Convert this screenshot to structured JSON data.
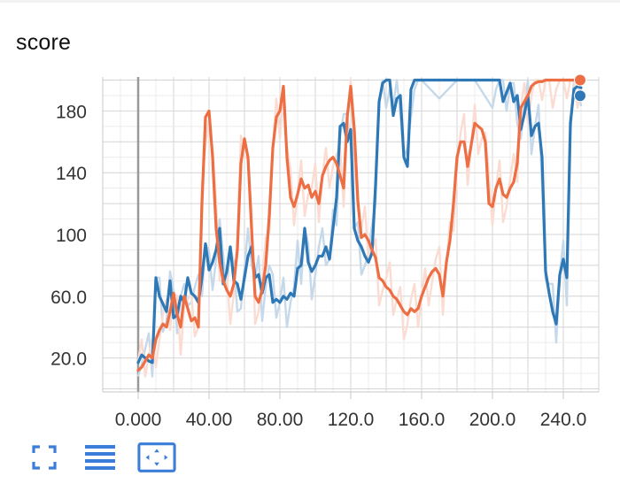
{
  "title": "score",
  "toolbar": {
    "buttons": [
      {
        "name": "fullscreen",
        "icon": "expand-icon"
      },
      {
        "name": "log-scale-toggle",
        "icon": "lines-icon"
      },
      {
        "name": "fit-domain",
        "icon": "fit-to-data-icon",
        "active": true
      }
    ],
    "accent": "#3b7dd8"
  },
  "chart_data": {
    "type": "line",
    "title": "score",
    "xlabel": "",
    "ylabel": "",
    "xlim": [
      -20,
      260
    ],
    "ylim": [
      -2,
      202
    ],
    "xticks": [
      0,
      40,
      80,
      120,
      160,
      200,
      240
    ],
    "xtick_labels": [
      "0.000",
      "40.00",
      "80.00",
      "120.0",
      "160.0",
      "200.0",
      "240.0"
    ],
    "yticks": [
      20,
      60,
      100,
      140,
      180
    ],
    "ytick_labels": [
      "20.0",
      "60.0",
      "100",
      "140",
      "180"
    ],
    "grid": true,
    "series": [
      {
        "color": "#2f78b6",
        "raw_color": "#c6d9ea",
        "x": [
          0,
          2,
          4,
          6,
          8,
          10,
          12,
          14,
          16,
          18,
          20,
          22,
          24,
          26,
          28,
          30,
          32,
          34,
          36,
          38,
          40,
          42,
          44,
          46,
          48,
          50,
          52,
          54,
          56,
          58,
          60,
          62,
          64,
          66,
          68,
          70,
          72,
          74,
          76,
          78,
          80,
          82,
          84,
          86,
          88,
          90,
          92,
          94,
          96,
          98,
          100,
          102,
          104,
          106,
          108,
          110,
          112,
          114,
          116,
          118,
          120,
          122,
          124,
          126,
          128,
          130,
          132,
          134,
          136,
          138,
          140,
          142,
          144,
          146,
          148,
          150,
          152,
          154,
          156,
          158,
          160,
          170,
          180,
          190,
          200,
          202,
          204,
          206,
          208,
          210,
          212,
          214,
          216,
          218,
          220,
          222,
          224,
          226,
          228,
          230,
          232,
          234,
          236,
          238,
          240,
          242,
          244,
          246,
          248,
          250
        ],
        "values": [
          17,
          22,
          20,
          18,
          17,
          72,
          60,
          55,
          50,
          70,
          46,
          48,
          60,
          56,
          72,
          62,
          60,
          56,
          72,
          94,
          77,
          82,
          90,
          104,
          68,
          76,
          92,
          70,
          68,
          58,
          72,
          86,
          92,
          72,
          74,
          62,
          72,
          74,
          56,
          58,
          56,
          60,
          58,
          62,
          60,
          78,
          80,
          104,
          82,
          76,
          80,
          86,
          86,
          92,
          84,
          104,
          124,
          170,
          172,
          160,
          168,
          104,
          96,
          92,
          86,
          82,
          88,
          132,
          186,
          198,
          200,
          200,
          177,
          188,
          190,
          150,
          144,
          194,
          200,
          200,
          200,
          200,
          200,
          200,
          200,
          200,
          200,
          186,
          192,
          198,
          186,
          190,
          168,
          178,
          190,
          164,
          170,
          172,
          150,
          76,
          62,
          50,
          42,
          74,
          84,
          72,
          172,
          194,
          196,
          195
        ]
      },
      {
        "color": "#ee6e44",
        "raw_color": "#fadcd2",
        "x": [
          0,
          2,
          4,
          6,
          8,
          10,
          12,
          14,
          16,
          18,
          20,
          22,
          24,
          26,
          28,
          30,
          32,
          34,
          36,
          38,
          40,
          42,
          44,
          46,
          48,
          50,
          52,
          54,
          56,
          58,
          60,
          62,
          64,
          66,
          68,
          70,
          72,
          74,
          76,
          78,
          80,
          82,
          84,
          86,
          88,
          90,
          92,
          94,
          96,
          98,
          100,
          102,
          104,
          106,
          108,
          110,
          112,
          114,
          116,
          118,
          120,
          122,
          124,
          126,
          128,
          130,
          132,
          134,
          136,
          138,
          140,
          142,
          144,
          146,
          148,
          150,
          152,
          154,
          156,
          158,
          160,
          162,
          164,
          166,
          168,
          170,
          172,
          174,
          176,
          178,
          180,
          182,
          184,
          186,
          188,
          190,
          192,
          194,
          196,
          198,
          200,
          202,
          204,
          206,
          208,
          210,
          212,
          214,
          216,
          218,
          220,
          222,
          224,
          226,
          228,
          230,
          232,
          234,
          236,
          238,
          240,
          242,
          244,
          246,
          248,
          250
        ],
        "values": [
          12,
          14,
          18,
          22,
          20,
          32,
          38,
          42,
          40,
          50,
          62,
          48,
          40,
          60,
          52,
          44,
          46,
          40,
          120,
          176,
          180,
          150,
          104,
          82,
          70,
          64,
          60,
          68,
          90,
          146,
          162,
          150,
          104,
          60,
          56,
          64,
          80,
          112,
          156,
          176,
          180,
          196,
          150,
          124,
          118,
          126,
          136,
          130,
          132,
          124,
          128,
          120,
          138,
          144,
          148,
          150,
          146,
          138,
          130,
          176,
          196,
          168,
          122,
          98,
          100,
          96,
          90,
          85,
          72,
          70,
          66,
          64,
          60,
          58,
          54,
          50,
          48,
          52,
          50,
          52,
          60,
          66,
          72,
          76,
          78,
          74,
          60,
          82,
          96,
          120,
          150,
          160,
          160,
          144,
          158,
          172,
          170,
          168,
          160,
          120,
          118,
          130,
          136,
          126,
          124,
          130,
          134,
          146,
          182,
          186,
          190,
          196,
          198,
          199,
          199,
          200,
          200,
          200,
          200,
          200,
          200,
          200,
          200,
          200,
          200,
          200
        ]
      }
    ]
  }
}
